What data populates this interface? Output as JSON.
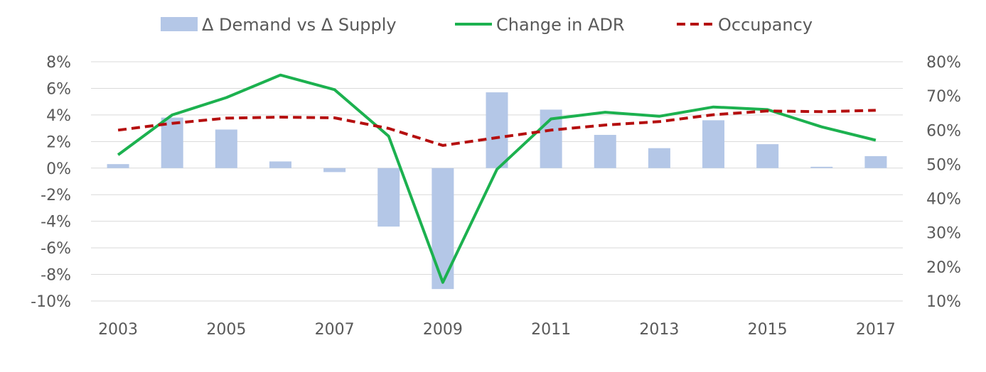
{
  "chart_data": {
    "type": "bar+line",
    "categories": [
      "2003",
      "2004",
      "2005",
      "2006",
      "2007",
      "2008",
      "2009",
      "2010",
      "2011",
      "2012",
      "2013",
      "2014",
      "2015",
      "2016",
      "2017"
    ],
    "x_tick_labels": [
      "2003",
      "2005",
      "2007",
      "2009",
      "2011",
      "2013",
      "2015",
      "2017"
    ],
    "y_left": {
      "ylim": [
        -10,
        8
      ],
      "ticks": [
        8,
        6,
        4,
        2,
        0,
        -2,
        -4,
        -6,
        -8,
        -10
      ],
      "tick_labels": [
        "8%",
        "6%",
        "4%",
        "2%",
        "0%",
        "-2%",
        "-4%",
        "-6%",
        "-8%",
        "-10%"
      ]
    },
    "y_right": {
      "ylim": [
        10,
        80
      ],
      "ticks": [
        80,
        70,
        60,
        50,
        40,
        30,
        20,
        10
      ],
      "tick_labels": [
        "80%",
        "70%",
        "60%",
        "50%",
        "40%",
        "30%",
        "20%",
        "10%"
      ]
    },
    "grid": true,
    "legend_position": "top",
    "series": [
      {
        "name": "Δ Demand vs Δ Supply",
        "type": "bar",
        "axis": "left",
        "color": "#b4c7e7",
        "values": [
          0.3,
          3.8,
          2.9,
          0.5,
          -0.3,
          -4.4,
          -9.1,
          5.7,
          4.4,
          2.5,
          1.5,
          3.6,
          1.8,
          0.1,
          0.9
        ]
      },
      {
        "name": "Change in ADR",
        "type": "line",
        "axis": "left",
        "color": "#1cb14f",
        "dash": "solid",
        "values": [
          1.0,
          4.0,
          5.3,
          7.0,
          5.9,
          2.4,
          -8.6,
          -0.1,
          3.7,
          4.2,
          3.9,
          4.6,
          4.4,
          3.1,
          2.1
        ]
      },
      {
        "name": "Occupancy",
        "type": "line",
        "axis": "right",
        "color": "#b50f0f",
        "dash": "dashed",
        "values": [
          60.0,
          62.0,
          63.5,
          63.8,
          63.6,
          60.5,
          55.5,
          57.8,
          60.0,
          61.5,
          62.5,
          64.5,
          65.6,
          65.4,
          65.8
        ]
      }
    ]
  }
}
